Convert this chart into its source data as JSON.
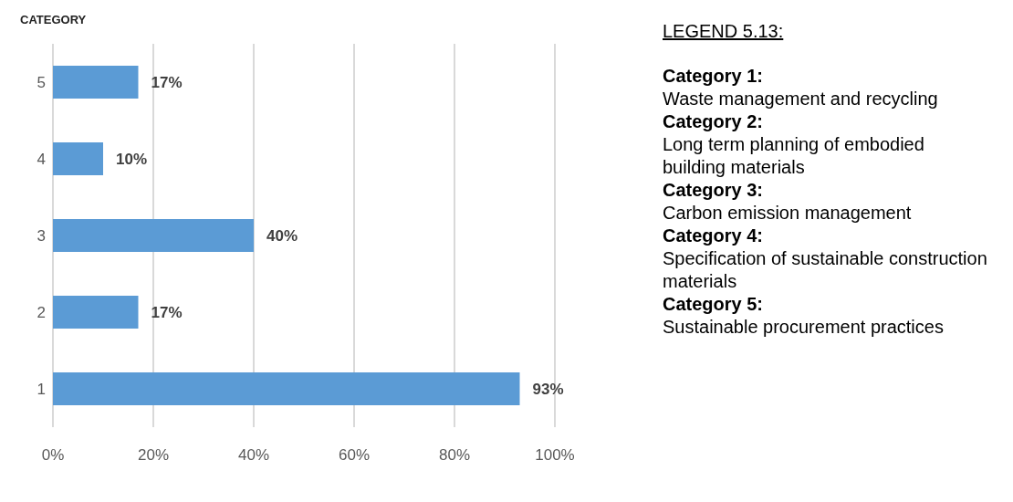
{
  "chart_data": {
    "type": "bar",
    "orientation": "horizontal",
    "ylabel": "CATEGORY",
    "categories": [
      "5",
      "4",
      "3",
      "2",
      "1"
    ],
    "values": [
      17,
      10,
      40,
      17,
      93
    ],
    "value_labels": [
      "17%",
      "10%",
      "40%",
      "17%",
      "93%"
    ],
    "color": "#5b9bd5",
    "xlim": [
      0,
      100
    ],
    "xticks": [
      {
        "value": 0,
        "label": "0%"
      },
      {
        "value": 20,
        "label": "20%"
      },
      {
        "value": 40,
        "label": "40%"
      },
      {
        "value": 60,
        "label": "60%"
      },
      {
        "value": 80,
        "label": "80%"
      },
      {
        "value": 100,
        "label": "100%"
      }
    ],
    "grid": "x",
    "annotations": [
      "LEGEND 5.13:",
      "Category 1:",
      "Waste management and recycling",
      "Category 2:",
      "Long term planning of embodied building materials",
      "Category 3:",
      "Carbon emission management",
      "Category 4:",
      "Specification of sustainable construction materials",
      "Category 5:",
      "Sustainable procurement practices"
    ]
  }
}
